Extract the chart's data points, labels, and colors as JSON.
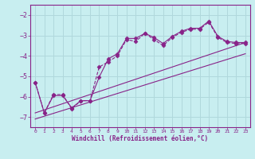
{
  "xlabel": "Windchill (Refroidissement éolien,°C)",
  "bg_color": "#c8eef0",
  "grid_color": "#b0d8dc",
  "line_color": "#882288",
  "xlim": [
    -0.5,
    23.5
  ],
  "ylim": [
    -7.5,
    -1.5
  ],
  "yticks": [
    -7,
    -6,
    -5,
    -4,
    -3,
    -2
  ],
  "xticks": [
    0,
    1,
    2,
    3,
    4,
    5,
    6,
    7,
    8,
    9,
    10,
    11,
    12,
    13,
    14,
    15,
    16,
    17,
    18,
    19,
    20,
    21,
    22,
    23
  ],
  "series": [
    {
      "x": [
        0,
        1,
        2,
        3,
        4,
        5,
        6,
        7,
        8,
        9,
        10,
        11,
        12,
        13,
        14,
        15,
        16,
        17,
        18,
        19,
        20,
        21,
        22,
        23
      ],
      "y": [
        -5.3,
        -6.8,
        -5.9,
        -5.9,
        -6.6,
        -6.2,
        -6.2,
        -4.55,
        -4.3,
        -4.0,
        -3.2,
        -3.3,
        -2.9,
        -3.2,
        -3.5,
        -3.1,
        -2.85,
        -2.7,
        -2.7,
        -2.35,
        -3.1,
        -3.35,
        -3.4,
        -3.4
      ],
      "marker": "D",
      "markersize": 2.5,
      "linestyle": "--"
    },
    {
      "x": [
        0,
        1,
        2,
        3,
        4,
        5,
        6,
        7,
        8,
        9,
        10,
        11,
        12,
        13,
        14,
        15,
        16,
        17,
        18,
        19,
        20,
        21,
        22,
        23
      ],
      "y": [
        -5.3,
        -6.8,
        -5.95,
        -5.95,
        -6.55,
        -6.2,
        -6.2,
        -5.05,
        -4.15,
        -3.9,
        -3.15,
        -3.15,
        -2.9,
        -3.1,
        -3.4,
        -3.05,
        -2.8,
        -2.65,
        -2.65,
        -2.3,
        -3.05,
        -3.3,
        -3.35,
        -3.35
      ],
      "marker": "D",
      "markersize": 2.5,
      "linestyle": "-"
    },
    {
      "x": [
        0,
        23
      ],
      "y": [
        -6.8,
        -3.35
      ],
      "marker": null,
      "markersize": 0,
      "linestyle": "-"
    },
    {
      "x": [
        0,
        23
      ],
      "y": [
        -7.1,
        -3.9
      ],
      "marker": null,
      "markersize": 0,
      "linestyle": "-"
    }
  ]
}
